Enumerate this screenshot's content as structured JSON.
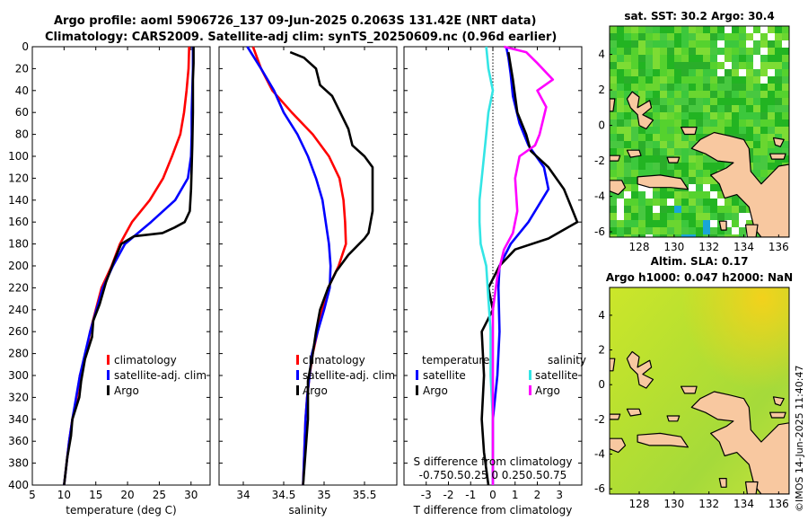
{
  "header": {
    "title_line1": "Argo profile: aoml 5906726_137 09-Jun-2025 0.2063S 131.42E (NRT data)",
    "title_line2": "Climatology: CARS2009. Satellite-adj clim: synTS_20250609.nc (0.96d earlier)"
  },
  "colors": {
    "climatology": "#ff0000",
    "satellite": "#0000ff",
    "argo": "#000000",
    "sal_satellite": "#33e5e5",
    "sal_argo": "#ff00ff",
    "land": "#f8c8a0"
  },
  "chart_data": [
    {
      "type": "line",
      "name": "temperature",
      "xlabel": "temperature (deg C)",
      "xlim": [
        5,
        33
      ],
      "ylim": [
        0,
        400
      ],
      "xticks": [
        5,
        10,
        15,
        20,
        25,
        30
      ],
      "yticks": [
        0,
        20,
        40,
        60,
        80,
        100,
        120,
        140,
        160,
        180,
        200,
        220,
        240,
        260,
        280,
        300,
        320,
        340,
        360,
        380,
        400
      ],
      "legend": [
        "climatology",
        "satellite-adj. clim",
        "Argo"
      ],
      "series": [
        {
          "name": "climatology",
          "color": "#ff0000",
          "points": [
            [
              29.7,
              0
            ],
            [
              29.6,
              20
            ],
            [
              29.3,
              40
            ],
            [
              28.9,
              60
            ],
            [
              28.3,
              80
            ],
            [
              27,
              100
            ],
            [
              25.6,
              120
            ],
            [
              23.5,
              140
            ],
            [
              20.7,
              160
            ],
            [
              18.8,
              180
            ],
            [
              17.5,
              200
            ],
            [
              15.9,
              220
            ],
            [
              15,
              240
            ],
            [
              14.1,
              260
            ],
            [
              13.5,
              280
            ],
            [
              12.5,
              300
            ],
            [
              12,
              320
            ],
            [
              11.3,
              340
            ],
            [
              10.8,
              360
            ],
            [
              10.4,
              380
            ],
            [
              10,
              400
            ]
          ]
        },
        {
          "name": "satellite-adj. clim",
          "color": "#0000ff",
          "points": [
            [
              30.3,
              0
            ],
            [
              30.3,
              20
            ],
            [
              30.2,
              40
            ],
            [
              30.1,
              60
            ],
            [
              30.1,
              80
            ],
            [
              30,
              100
            ],
            [
              29.5,
              120
            ],
            [
              27.5,
              140
            ],
            [
              23.7,
              160
            ],
            [
              19.6,
              180
            ],
            [
              17.7,
              200
            ],
            [
              16.1,
              220
            ],
            [
              15.1,
              240
            ],
            [
              14.1,
              260
            ],
            [
              13.3,
              280
            ],
            [
              12.5,
              300
            ],
            [
              11.9,
              320
            ],
            [
              11.3,
              340
            ],
            [
              10.8,
              360
            ],
            [
              10.4,
              380
            ],
            [
              10,
              400
            ]
          ]
        },
        {
          "name": "Argo",
          "color": "#000000",
          "points": [
            [
              30.4,
              0
            ],
            [
              30.4,
              15
            ],
            [
              30.3,
              30
            ],
            [
              30.3,
              60
            ],
            [
              30.2,
              90
            ],
            [
              30.1,
              110
            ],
            [
              30,
              130
            ],
            [
              29.8,
              150
            ],
            [
              29,
              160
            ],
            [
              27.4,
              165
            ],
            [
              25.5,
              170
            ],
            [
              21,
              173
            ],
            [
              19,
              180
            ],
            [
              17.9,
              195
            ],
            [
              16.6,
              215
            ],
            [
              15.6,
              235
            ],
            [
              14.6,
              250
            ],
            [
              14.4,
              265
            ],
            [
              13.3,
              285
            ],
            [
              12.7,
              305
            ],
            [
              12.4,
              320
            ],
            [
              11.3,
              340
            ],
            [
              11.1,
              355
            ],
            [
              10.5,
              375
            ],
            [
              10.2,
              390
            ],
            [
              10,
              400
            ]
          ]
        }
      ]
    },
    {
      "type": "line",
      "name": "salinity",
      "xlabel": "salinity",
      "xlim": [
        33.7,
        35.9
      ],
      "ylim": [
        0,
        400
      ],
      "xticks": [
        34,
        34.5,
        35,
        35.5
      ],
      "legend": [
        "climatology",
        "satellite-adj. clim",
        "Argo"
      ],
      "series": [
        {
          "name": "climatology",
          "color": "#ff0000",
          "points": [
            [
              34.12,
              0
            ],
            [
              34.22,
              20
            ],
            [
              34.36,
              40
            ],
            [
              34.6,
              60
            ],
            [
              34.86,
              80
            ],
            [
              35.06,
              100
            ],
            [
              35.19,
              120
            ],
            [
              35.24,
              140
            ],
            [
              35.26,
              160
            ],
            [
              35.27,
              180
            ],
            [
              35.18,
              200
            ],
            [
              35.05,
              220
            ],
            [
              34.98,
              240
            ],
            [
              34.92,
              260
            ],
            [
              34.86,
              280
            ],
            [
              34.82,
              300
            ],
            [
              34.79,
              320
            ],
            [
              34.77,
              340
            ],
            [
              34.76,
              360
            ],
            [
              34.75,
              380
            ],
            [
              34.74,
              400
            ]
          ]
        },
        {
          "name": "satellite-adj. clim",
          "color": "#0000ff",
          "points": [
            [
              34.05,
              0
            ],
            [
              34.22,
              20
            ],
            [
              34.38,
              40
            ],
            [
              34.5,
              60
            ],
            [
              34.67,
              80
            ],
            [
              34.8,
              100
            ],
            [
              34.9,
              120
            ],
            [
              34.98,
              140
            ],
            [
              35.02,
              160
            ],
            [
              35.06,
              180
            ],
            [
              35.08,
              200
            ],
            [
              35.07,
              220
            ],
            [
              35,
              240
            ],
            [
              34.92,
              260
            ],
            [
              34.85,
              280
            ],
            [
              34.82,
              300
            ],
            [
              34.79,
              320
            ],
            [
              34.77,
              340
            ],
            [
              34.76,
              360
            ],
            [
              34.75,
              380
            ],
            [
              34.74,
              400
            ]
          ]
        },
        {
          "name": "Argo",
          "color": "#000000",
          "points": [
            [
              34.58,
              5
            ],
            [
              34.75,
              10
            ],
            [
              34.9,
              20
            ],
            [
              34.95,
              35
            ],
            [
              35.1,
              45
            ],
            [
              35.2,
              60
            ],
            [
              35.3,
              75
            ],
            [
              35.35,
              90
            ],
            [
              35.5,
              100
            ],
            [
              35.6,
              110
            ],
            [
              35.6,
              130
            ],
            [
              35.6,
              150
            ],
            [
              35.55,
              170
            ],
            [
              35.5,
              175
            ],
            [
              35.3,
              190
            ],
            [
              35.15,
              205
            ],
            [
              35.05,
              220
            ],
            [
              34.95,
              240
            ],
            [
              34.9,
              260
            ],
            [
              34.85,
              285
            ],
            [
              34.8,
              305
            ],
            [
              34.8,
              340
            ],
            [
              34.78,
              360
            ],
            [
              34.76,
              380
            ],
            [
              34.74,
              400
            ]
          ]
        }
      ]
    },
    {
      "type": "line",
      "name": "difference",
      "xlabel": "T difference from climatology",
      "top_label": "S difference from climatology",
      "top_ticks": [
        "-0.75",
        "0.5",
        "0.25",
        "0",
        "0.25",
        "0.5",
        "0.75"
      ],
      "xlim": [
        -4,
        4
      ],
      "ylim": [
        0,
        400
      ],
      "xticks": [
        -3,
        -2,
        -1,
        0,
        1,
        2,
        3
      ],
      "legend_titles": [
        "temperature",
        "salinity"
      ],
      "legend": [
        "satellite",
        "Argo",
        "satellite",
        "Argo"
      ],
      "series": [
        {
          "name": "T satellite",
          "color": "#0000ff",
          "points": [
            [
              0.6,
              0
            ],
            [
              0.7,
              10
            ],
            [
              0.8,
              25
            ],
            [
              0.9,
              45
            ],
            [
              1.2,
              70
            ],
            [
              1.6,
              90
            ],
            [
              2.3,
              110
            ],
            [
              2.5,
              130
            ],
            [
              1.6,
              160
            ],
            [
              0.8,
              180
            ],
            [
              0.3,
              200
            ],
            [
              0.25,
              220
            ],
            [
              0.3,
              260
            ],
            [
              0.2,
              300
            ],
            [
              0,
              340
            ],
            [
              0,
              400
            ]
          ]
        },
        {
          "name": "T Argo",
          "color": "#000000",
          "points": [
            [
              0.7,
              5
            ],
            [
              0.9,
              30
            ],
            [
              1.1,
              60
            ],
            [
              1.5,
              80
            ],
            [
              1.7,
              95
            ],
            [
              2.5,
              110
            ],
            [
              3.2,
              130
            ],
            [
              3.6,
              150
            ],
            [
              3.8,
              160
            ],
            [
              2.5,
              175
            ],
            [
              1,
              185
            ],
            [
              0.3,
              200
            ],
            [
              -0.2,
              220
            ],
            [
              0,
              240
            ],
            [
              -0.5,
              260
            ],
            [
              -0.4,
              300
            ],
            [
              -0.5,
              340
            ],
            [
              -0.4,
              370
            ],
            [
              -0.2,
              400
            ]
          ]
        },
        {
          "name": "S satellite",
          "color": "#33e5e5",
          "points": [
            [
              -0.3,
              0
            ],
            [
              -0.2,
              20
            ],
            [
              0,
              40
            ],
            [
              -0.2,
              60
            ],
            [
              -0.3,
              80
            ],
            [
              -0.4,
              100
            ],
            [
              -0.5,
              120
            ],
            [
              -0.6,
              140
            ],
            [
              -0.6,
              160
            ],
            [
              -0.55,
              180
            ],
            [
              -0.3,
              200
            ],
            [
              -0.2,
              230
            ],
            [
              -0.1,
              260
            ],
            [
              -0.1,
              300
            ],
            [
              0,
              340
            ],
            [
              0,
              400
            ]
          ]
        },
        {
          "name": "S Argo",
          "color": "#ff00ff",
          "points": [
            [
              0.5,
              0
            ],
            [
              1.5,
              5
            ],
            [
              2,
              15
            ],
            [
              2.7,
              30
            ],
            [
              2,
              40
            ],
            [
              2.4,
              55
            ],
            [
              2.1,
              80
            ],
            [
              1.9,
              90
            ],
            [
              1.2,
              100
            ],
            [
              1,
              120
            ],
            [
              1.1,
              150
            ],
            [
              0.9,
              170
            ],
            [
              0.5,
              185
            ],
            [
              0.2,
              210
            ],
            [
              0,
              240
            ],
            [
              0,
              400
            ]
          ]
        }
      ]
    }
  ],
  "maps": {
    "sst": {
      "title": "sat. SST: 30.2 Argo: 30.4",
      "lon_ticks": [
        128,
        130,
        132,
        134,
        136
      ],
      "lat_ticks": [
        4,
        2,
        0,
        -2,
        -4,
        -6
      ],
      "xlim": [
        126.3,
        136.6
      ],
      "ylim": [
        -6.3,
        5.6
      ]
    },
    "sla": {
      "title_line1": "Altim. SLA: 0.17",
      "title_line2": "Argo h1000: 0.047 h2000: NaN",
      "lon_ticks": [
        128,
        130,
        132,
        134,
        136
      ],
      "lat_ticks": [
        4,
        2,
        0,
        -2,
        -4,
        -6
      ],
      "xlim": [
        126.3,
        136.6
      ],
      "ylim": [
        -6.3,
        5.6
      ]
    }
  },
  "footer": {
    "stamp": "©IMOS 14-Jun-2025 11:40:47"
  }
}
